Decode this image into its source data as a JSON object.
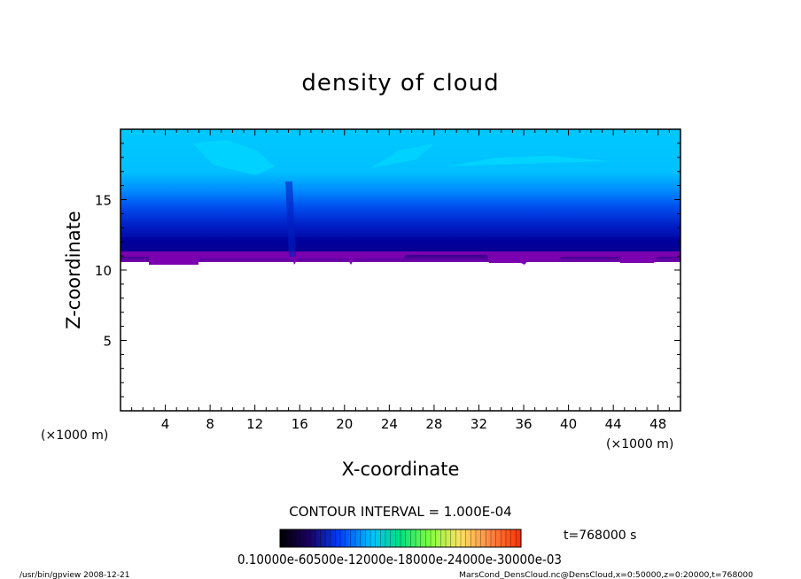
{
  "chart_data": {
    "type": "heatmap",
    "title": "density of cloud",
    "xlabel": "X-coordinate",
    "ylabel": "Z-coordinate",
    "x_unit": "(×1000 m)",
    "y_unit": "(×1000 m)",
    "xlim": [
      0,
      50
    ],
    "ylim": [
      0,
      20
    ],
    "x_ticks": [
      4,
      8,
      12,
      16,
      20,
      24,
      28,
      32,
      36,
      40,
      44,
      48
    ],
    "y_ticks": [
      5,
      10,
      15
    ],
    "contour_interval_text": "CONTOUR INTERVAL = 1.000E-04",
    "time_text": "t=768000 s",
    "colorbar_labels_text": "0.10000e-60500e-12000e-18000e-24000e-30000e-03",
    "colorbar_levels": [
      0.1,
      0.6,
      1.2,
      1.8,
      2.4,
      3.0
    ],
    "footer_left": "/usr/bin/gpview   2008-12-21",
    "footer_right": "MarsCond_DensCloud.nc@DensCloud,x=0:50000,z=0:20000,t=768000",
    "cloud_base_km": 10.5,
    "cloud_top_km": 20,
    "colors": {
      "upper": "#00c8ff",
      "mid": "#0050f0",
      "dense": "#00009a",
      "base": "#7a00b0"
    }
  }
}
